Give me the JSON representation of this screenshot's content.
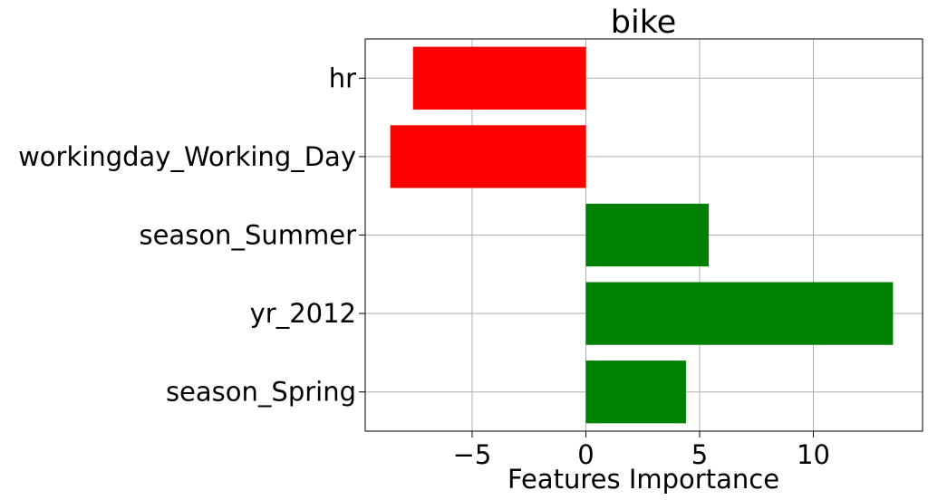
{
  "chart_data": {
    "type": "bar",
    "orientation": "horizontal",
    "title": "bike",
    "xlabel": "Features Importance",
    "ylabel": "",
    "categories": [
      "season_Spring",
      "yr_2012",
      "season_Summer",
      "workingday_Working_Day",
      "hr"
    ],
    "values": [
      4.4,
      13.5,
      5.4,
      -8.6,
      -7.6
    ],
    "colors": [
      "#008000",
      "#008000",
      "#008000",
      "#ff0000",
      "#ff0000"
    ],
    "positive_color": "#008000",
    "negative_color": "#ff0000",
    "xlim": [
      -9.7,
      14.8
    ],
    "xticks": [
      -5,
      0,
      5,
      10
    ],
    "xtick_labels": [
      "−5",
      "0",
      "5",
      "10"
    ],
    "grid": true
  }
}
